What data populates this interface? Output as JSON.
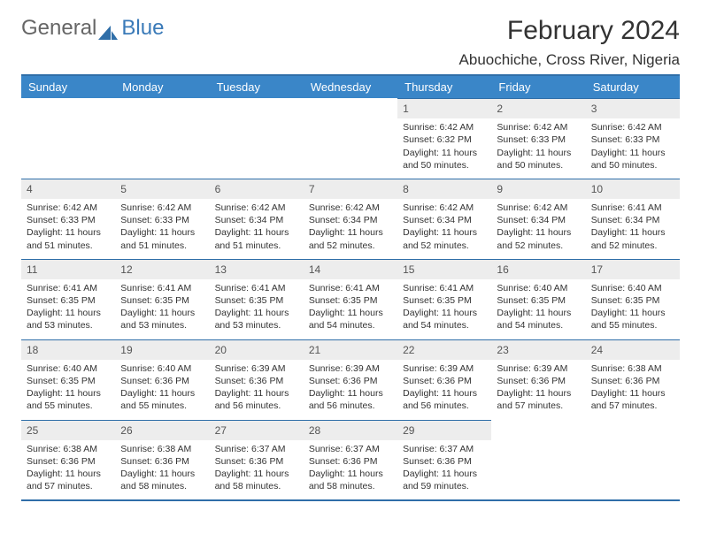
{
  "logo": {
    "text1": "General",
    "text2": "Blue",
    "icon_color": "#2f6ea8"
  },
  "title": "February 2024",
  "location": "Abuochiche, Cross River, Nigeria",
  "colors": {
    "header_bg": "#3a86c8",
    "header_text": "#ffffff",
    "border": "#2f6ea8",
    "daynum_bg": "#ededed",
    "text": "#333333"
  },
  "fonts": {
    "title_size": 30,
    "location_size": 17,
    "header_size": 13,
    "body_size": 10.5
  },
  "day_labels": [
    "Sunday",
    "Monday",
    "Tuesday",
    "Wednesday",
    "Thursday",
    "Friday",
    "Saturday"
  ],
  "weeks": [
    [
      {
        "n": "",
        "empty": true
      },
      {
        "n": "",
        "empty": true
      },
      {
        "n": "",
        "empty": true
      },
      {
        "n": "",
        "empty": true
      },
      {
        "n": "1",
        "sr": "6:42 AM",
        "ss": "6:32 PM",
        "dl": "11 hours and 50 minutes."
      },
      {
        "n": "2",
        "sr": "6:42 AM",
        "ss": "6:33 PM",
        "dl": "11 hours and 50 minutes."
      },
      {
        "n": "3",
        "sr": "6:42 AM",
        "ss": "6:33 PM",
        "dl": "11 hours and 50 minutes."
      }
    ],
    [
      {
        "n": "4",
        "sr": "6:42 AM",
        "ss": "6:33 PM",
        "dl": "11 hours and 51 minutes."
      },
      {
        "n": "5",
        "sr": "6:42 AM",
        "ss": "6:33 PM",
        "dl": "11 hours and 51 minutes."
      },
      {
        "n": "6",
        "sr": "6:42 AM",
        "ss": "6:34 PM",
        "dl": "11 hours and 51 minutes."
      },
      {
        "n": "7",
        "sr": "6:42 AM",
        "ss": "6:34 PM",
        "dl": "11 hours and 52 minutes."
      },
      {
        "n": "8",
        "sr": "6:42 AM",
        "ss": "6:34 PM",
        "dl": "11 hours and 52 minutes."
      },
      {
        "n": "9",
        "sr": "6:42 AM",
        "ss": "6:34 PM",
        "dl": "11 hours and 52 minutes."
      },
      {
        "n": "10",
        "sr": "6:41 AM",
        "ss": "6:34 PM",
        "dl": "11 hours and 52 minutes."
      }
    ],
    [
      {
        "n": "11",
        "sr": "6:41 AM",
        "ss": "6:35 PM",
        "dl": "11 hours and 53 minutes."
      },
      {
        "n": "12",
        "sr": "6:41 AM",
        "ss": "6:35 PM",
        "dl": "11 hours and 53 minutes."
      },
      {
        "n": "13",
        "sr": "6:41 AM",
        "ss": "6:35 PM",
        "dl": "11 hours and 53 minutes."
      },
      {
        "n": "14",
        "sr": "6:41 AM",
        "ss": "6:35 PM",
        "dl": "11 hours and 54 minutes."
      },
      {
        "n": "15",
        "sr": "6:41 AM",
        "ss": "6:35 PM",
        "dl": "11 hours and 54 minutes."
      },
      {
        "n": "16",
        "sr": "6:40 AM",
        "ss": "6:35 PM",
        "dl": "11 hours and 54 minutes."
      },
      {
        "n": "17",
        "sr": "6:40 AM",
        "ss": "6:35 PM",
        "dl": "11 hours and 55 minutes."
      }
    ],
    [
      {
        "n": "18",
        "sr": "6:40 AM",
        "ss": "6:35 PM",
        "dl": "11 hours and 55 minutes."
      },
      {
        "n": "19",
        "sr": "6:40 AM",
        "ss": "6:36 PM",
        "dl": "11 hours and 55 minutes."
      },
      {
        "n": "20",
        "sr": "6:39 AM",
        "ss": "6:36 PM",
        "dl": "11 hours and 56 minutes."
      },
      {
        "n": "21",
        "sr": "6:39 AM",
        "ss": "6:36 PM",
        "dl": "11 hours and 56 minutes."
      },
      {
        "n": "22",
        "sr": "6:39 AM",
        "ss": "6:36 PM",
        "dl": "11 hours and 56 minutes."
      },
      {
        "n": "23",
        "sr": "6:39 AM",
        "ss": "6:36 PM",
        "dl": "11 hours and 57 minutes."
      },
      {
        "n": "24",
        "sr": "6:38 AM",
        "ss": "6:36 PM",
        "dl": "11 hours and 57 minutes."
      }
    ],
    [
      {
        "n": "25",
        "sr": "6:38 AM",
        "ss": "6:36 PM",
        "dl": "11 hours and 57 minutes."
      },
      {
        "n": "26",
        "sr": "6:38 AM",
        "ss": "6:36 PM",
        "dl": "11 hours and 58 minutes."
      },
      {
        "n": "27",
        "sr": "6:37 AM",
        "ss": "6:36 PM",
        "dl": "11 hours and 58 minutes."
      },
      {
        "n": "28",
        "sr": "6:37 AM",
        "ss": "6:36 PM",
        "dl": "11 hours and 58 minutes."
      },
      {
        "n": "29",
        "sr": "6:37 AM",
        "ss": "6:36 PM",
        "dl": "11 hours and 59 minutes."
      },
      {
        "n": "",
        "empty": true
      },
      {
        "n": "",
        "empty": true
      }
    ]
  ]
}
